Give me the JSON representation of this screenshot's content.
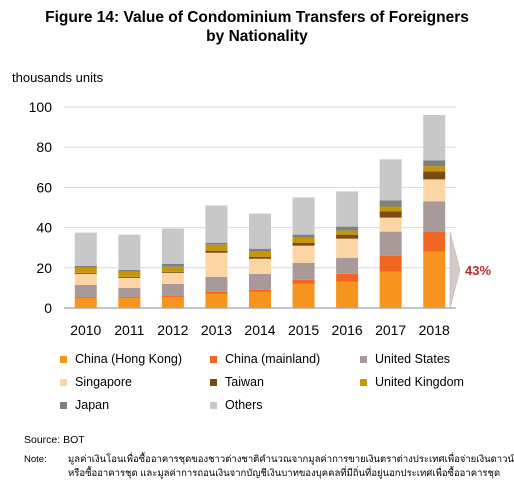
{
  "title_line1": "Figure 14: Value of Condominium Transfers of Foreigners",
  "title_line2": "by Nationality",
  "source": "Source: BOT",
  "note_label": "Note:",
  "note_line1": "มูลค่าเงินโอนเพื่อซื้ออาคารชุดของชาวต่างชาติคำนวณจากมูลค่าการขายเงินตราต่างประเทศเพื่อจ่ายเงินดาวน์",
  "note_line2": "หรือซื้ออาคารชุด และมูลค่าการถอนเงินจากบัญชีเงินบาทของบุคคลที่มีถิ่นที่อยู่นอกประเทศเพื่อซื้ออาคารชุด",
  "chart_data": {
    "type": "bar",
    "stacked": true,
    "ylabel": "thousands units",
    "ylim": [
      0,
      100
    ],
    "yticks": [
      0,
      20,
      40,
      60,
      80,
      100
    ],
    "categories": [
      "2010",
      "2011",
      "2012",
      "2013",
      "2014",
      "2015",
      "2016",
      "2017",
      "2018"
    ],
    "series": [
      {
        "name": "China (Hong Kong)",
        "color": "#F7941D",
        "values": [
          5,
          5,
          5.5,
          7,
          8,
          12,
          13,
          18,
          28
        ]
      },
      {
        "name": "China (mainland)",
        "color": "#F26522",
        "values": [
          0.5,
          0.5,
          0.5,
          1,
          1,
          2,
          4,
          8,
          10
        ]
      },
      {
        "name": "United States",
        "color": "#A89A98",
        "values": [
          6,
          4.5,
          6,
          7.5,
          8,
          8.5,
          8,
          12,
          15
        ]
      },
      {
        "name": "Singapore",
        "color": "#FCD5A5",
        "values": [
          5.5,
          5,
          5.5,
          12,
          7.5,
          8.5,
          9.5,
          7,
          11
        ]
      },
      {
        "name": "Taiwan",
        "color": "#7A4A10",
        "values": [
          0.5,
          0.5,
          0.5,
          1,
          1,
          1.5,
          2,
          3,
          4
        ]
      },
      {
        "name": "United Kingdom",
        "color": "#C89600",
        "values": [
          2.5,
          2.5,
          2.5,
          3,
          2.5,
          2.5,
          2,
          2.5,
          2.5
        ]
      },
      {
        "name": "Japan",
        "color": "#808080",
        "values": [
          1,
          1,
          1.5,
          1,
          1.5,
          1.5,
          2,
          3,
          3
        ]
      },
      {
        "name": "Others",
        "color": "#C8C8C8",
        "values": [
          16.5,
          17.5,
          17.5,
          18.5,
          17.5,
          18.5,
          17.5,
          20.5,
          22.5
        ]
      }
    ],
    "annotation": {
      "text": "43%",
      "color": "#C0272D",
      "bracket_range": [
        0,
        38
      ]
    }
  }
}
